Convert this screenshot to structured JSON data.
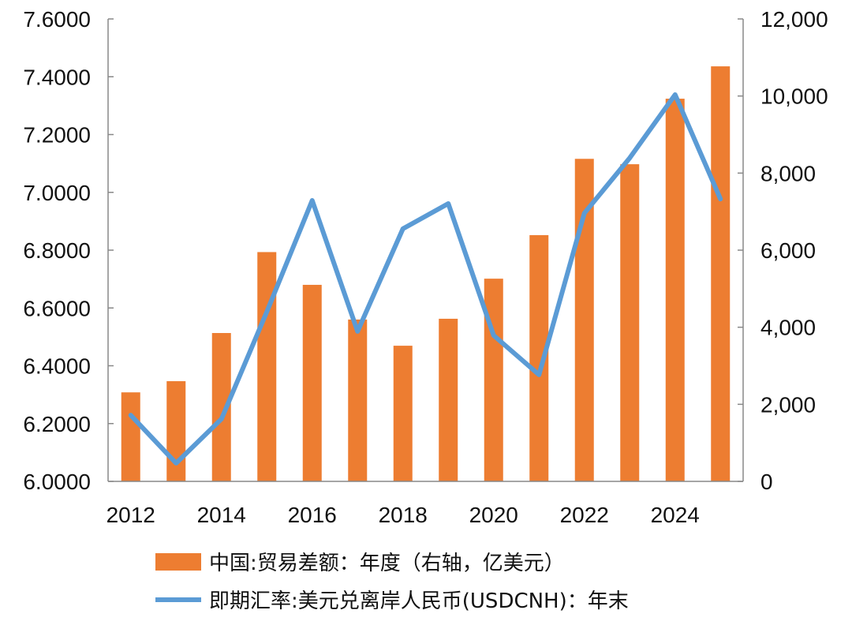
{
  "chart_data": {
    "type": "bar+line",
    "x": [
      2012,
      2013,
      2014,
      2015,
      2016,
      2017,
      2018,
      2019,
      2020,
      2021,
      2022,
      2023,
      2024,
      2025
    ],
    "x_tick_labels": [
      "2012",
      "2014",
      "2016",
      "2018",
      "2020",
      "2022",
      "2024"
    ],
    "series": [
      {
        "name": "中国:贸易差额：年度（右轴，亿美元）",
        "type": "bar",
        "axis": "right",
        "color": "#ED7D31",
        "values": [
          2310,
          2600,
          3850,
          5950,
          5100,
          4200,
          3520,
          4220,
          5260,
          6390,
          8370,
          8230,
          9930,
          10770
        ]
      },
      {
        "name": "即期汇率:美元兑离岸人民币(USDCNH)：年末",
        "type": "line",
        "axis": "left",
        "color": "#5B9BD5",
        "values": [
          6.229,
          6.063,
          6.216,
          6.587,
          6.972,
          6.519,
          6.874,
          6.961,
          6.505,
          6.369,
          6.928,
          7.119,
          7.338,
          6.977
        ]
      }
    ],
    "left_axis": {
      "ylim": [
        6.0,
        7.6
      ],
      "tick_labels": [
        "6.0000",
        "6.2000",
        "6.4000",
        "6.6000",
        "6.8000",
        "7.0000",
        "7.2000",
        "7.4000",
        "7.6000"
      ]
    },
    "right_axis": {
      "ylim": [
        0,
        12000
      ],
      "tick_labels": [
        "0",
        "2,000",
        "4,000",
        "6,000",
        "8,000",
        "10,000",
        "12,000"
      ]
    },
    "legend_placement": "bottom",
    "grid": false
  }
}
